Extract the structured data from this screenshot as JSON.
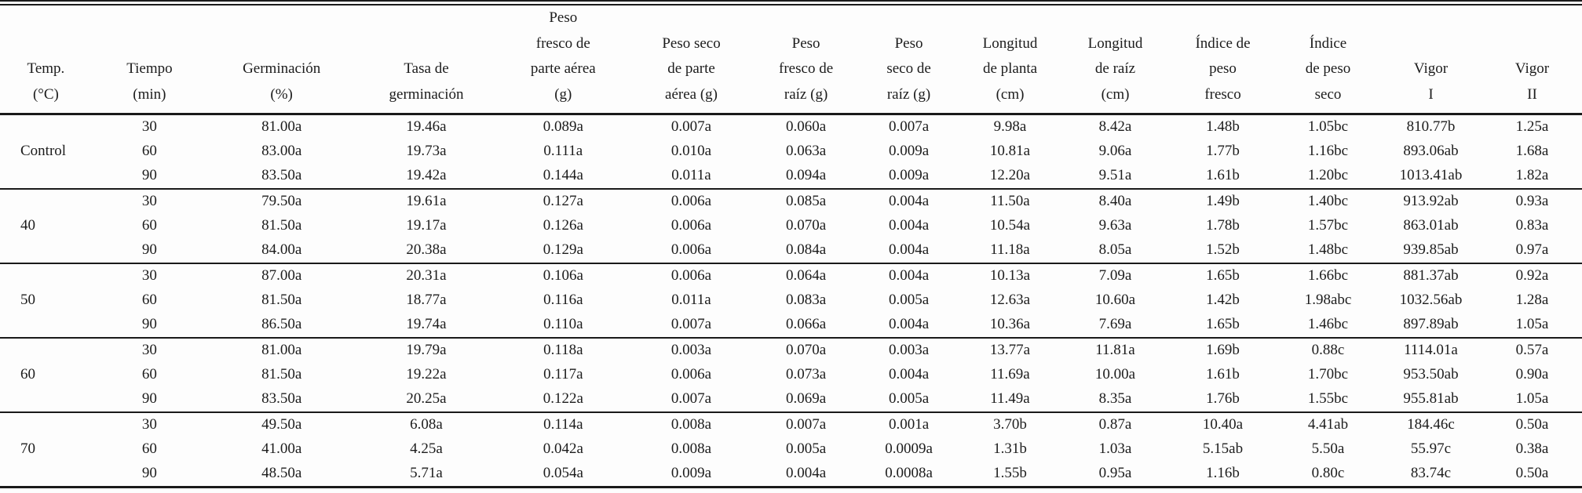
{
  "chart_data": {
    "type": "table",
    "columns": [
      {
        "id": "temp",
        "label": "Temp.\n(°C)"
      },
      {
        "id": "tiempo",
        "label": "Tiempo\n(min)"
      },
      {
        "id": "germinacion",
        "label": "Germinación\n(%)"
      },
      {
        "id": "tasa_germinacion",
        "label": "Tasa de\ngerminación"
      },
      {
        "id": "peso_fresco_parte_aerea",
        "label": "Peso\nfresco de\nparte aérea\n(g)"
      },
      {
        "id": "peso_seco_parte_aerea",
        "label": "Peso seco\nde parte\naérea (g)"
      },
      {
        "id": "peso_fresco_raiz",
        "label": "Peso\nfresco de\nraíz (g)"
      },
      {
        "id": "peso_seco_raiz",
        "label": "Peso\nseco de\nraíz (g)"
      },
      {
        "id": "longitud_planta",
        "label": "Longitud\nde planta\n(cm)"
      },
      {
        "id": "longitud_raiz",
        "label": "Longitud\nde raíz\n(cm)"
      },
      {
        "id": "indice_peso_fresco",
        "label": "Índice de\npeso\nfresco"
      },
      {
        "id": "indice_peso_seco",
        "label": "Índice\nde peso\nseco"
      },
      {
        "id": "vigor_i",
        "label": "Vigor\nI"
      },
      {
        "id": "vigor_ii",
        "label": "Vigor\nII"
      }
    ],
    "groups": [
      {
        "temp": "Control",
        "rows": [
          [
            "30",
            "81.00a",
            "19.46a",
            "0.089a",
            "0.007a",
            "0.060a",
            "0.007a",
            "9.98a",
            "8.42a",
            "1.48b",
            "1.05bc",
            "810.77b",
            "1.25a"
          ],
          [
            "60",
            "83.00a",
            "19.73a",
            "0.111a",
            "0.010a",
            "0.063a",
            "0.009a",
            "10.81a",
            "9.06a",
            "1.77b",
            "1.16bc",
            "893.06ab",
            "1.68a"
          ],
          [
            "90",
            "83.50a",
            "19.42a",
            "0.144a",
            "0.011a",
            "0.094a",
            "0.009a",
            "12.20a",
            "9.51a",
            "1.61b",
            "1.20bc",
            "1013.41ab",
            "1.82a"
          ]
        ]
      },
      {
        "temp": "40",
        "rows": [
          [
            "30",
            "79.50a",
            "19.61a",
            "0.127a",
            "0.006a",
            "0.085a",
            "0.004a",
            "11.50a",
            "8.40a",
            "1.49b",
            "1.40bc",
            "913.92ab",
            "0.93a"
          ],
          [
            "60",
            "81.50a",
            "19.17a",
            "0.126a",
            "0.006a",
            "0.070a",
            "0.004a",
            "10.54a",
            "9.63a",
            "1.78b",
            "1.57bc",
            "863.01ab",
            "0.83a"
          ],
          [
            "90",
            "84.00a",
            "20.38a",
            "0.129a",
            "0.006a",
            "0.084a",
            "0.004a",
            "11.18a",
            "8.05a",
            "1.52b",
            "1.48bc",
            "939.85ab",
            "0.97a"
          ]
        ]
      },
      {
        "temp": "50",
        "rows": [
          [
            "30",
            "87.00a",
            "20.31a",
            "0.106a",
            "0.006a",
            "0.064a",
            "0.004a",
            "10.13a",
            "7.09a",
            "1.65b",
            "1.66bc",
            "881.37ab",
            "0.92a"
          ],
          [
            "60",
            "81.50a",
            "18.77a",
            "0.116a",
            "0.011a",
            "0.083a",
            "0.005a",
            "12.63a",
            "10.60a",
            "1.42b",
            "1.98abc",
            "1032.56ab",
            "1.28a"
          ],
          [
            "90",
            "86.50a",
            "19.74a",
            "0.110a",
            "0.007a",
            "0.066a",
            "0.004a",
            "10.36a",
            "7.69a",
            "1.65b",
            "1.46bc",
            "897.89ab",
            "1.05a"
          ]
        ]
      },
      {
        "temp": "60",
        "rows": [
          [
            "30",
            "81.00a",
            "19.79a",
            "0.118a",
            "0.003a",
            "0.070a",
            "0.003a",
            "13.77a",
            "11.81a",
            "1.69b",
            "0.88c",
            "1114.01a",
            "0.57a"
          ],
          [
            "60",
            "81.50a",
            "19.22a",
            "0.117a",
            "0.006a",
            "0.073a",
            "0.004a",
            "11.69a",
            "10.00a",
            "1.61b",
            "1.70bc",
            "953.50ab",
            "0.90a"
          ],
          [
            "90",
            "83.50a",
            "20.25a",
            "0.122a",
            "0.007a",
            "0.069a",
            "0.005a",
            "11.49a",
            "8.35a",
            "1.76b",
            "1.55bc",
            "955.81ab",
            "1.05a"
          ]
        ]
      },
      {
        "temp": "70",
        "rows": [
          [
            "30",
            "49.50a",
            "6.08a",
            "0.114a",
            "0.008a",
            "0.007a",
            "0.001a",
            "3.70b",
            "0.87a",
            "10.40a",
            "4.41ab",
            "184.46c",
            "0.50a"
          ],
          [
            "60",
            "41.00a",
            "4.25a",
            "0.042a",
            "0.008a",
            "0.005a",
            "0.0009a",
            "1.31b",
            "1.03a",
            "5.15ab",
            "5.50a",
            "55.97c",
            "0.38a"
          ],
          [
            "90",
            "48.50a",
            "5.71a",
            "0.054a",
            "0.009a",
            "0.004a",
            "0.0008a",
            "1.55b",
            "0.95a",
            "1.16b",
            "0.80c",
            "83.74c",
            "0.50a"
          ]
        ]
      }
    ]
  }
}
